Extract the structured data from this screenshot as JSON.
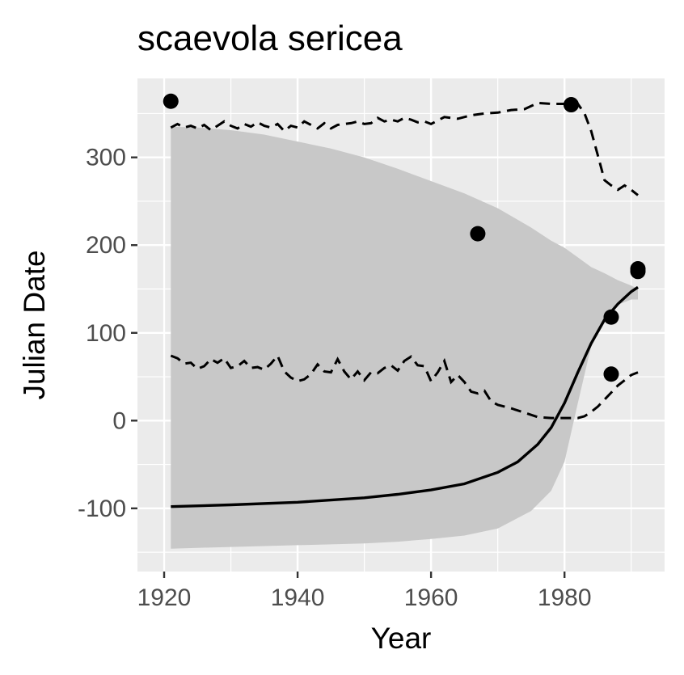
{
  "chart_data": {
    "type": "scatter",
    "title": "scaevola sericea",
    "xlabel": "Year",
    "ylabel": "Julian Date",
    "xlim": [
      1916,
      1995
    ],
    "ylim": [
      -172,
      390
    ],
    "x_ticks": [
      1920,
      1940,
      1960,
      1980
    ],
    "x_tick_labels": [
      "1920",
      "1940",
      "1960",
      "1980"
    ],
    "y_ticks": [
      -100,
      0,
      100,
      200,
      300
    ],
    "y_tick_labels": [
      "-100",
      "0",
      "100",
      "200",
      "300"
    ],
    "grid": true,
    "legend": "none",
    "colors": {
      "panel": "#ebebeb",
      "ribbon": "#c8c8c8",
      "line": "#000000",
      "points": "#000000",
      "tick_text": "#4d4d4d"
    },
    "points": {
      "x": [
        1921,
        1967,
        1981,
        1987,
        1987,
        1991,
        1991
      ],
      "y": [
        364,
        213,
        360,
        118,
        53,
        173,
        170
      ]
    },
    "fit_line": {
      "x": [
        1921,
        1930,
        1940,
        1950,
        1955,
        1960,
        1965,
        1970,
        1973,
        1976,
        1978,
        1980,
        1982,
        1984,
        1986,
        1988,
        1990,
        1991
      ],
      "y": [
        -98,
        -96,
        -93,
        -88,
        -84,
        -79,
        -72,
        -59,
        -47,
        -27,
        -8,
        20,
        55,
        88,
        115,
        133,
        147,
        152
      ]
    },
    "ribbon": {
      "x": [
        1921,
        1925,
        1930,
        1935,
        1940,
        1945,
        1950,
        1955,
        1960,
        1965,
        1970,
        1975,
        1978,
        1980,
        1982,
        1984,
        1986,
        1988,
        1990,
        1991
      ],
      "upper": [
        335,
        334,
        331,
        326,
        318,
        310,
        300,
        287,
        273,
        259,
        242,
        220,
        205,
        197,
        186,
        175,
        168,
        160,
        154,
        150
      ],
      "lower": [
        -146,
        -145,
        -144,
        -143,
        -142,
        -141,
        -140,
        -138,
        -135,
        -131,
        -123,
        -103,
        -80,
        -47,
        20,
        85,
        115,
        132,
        138,
        138
      ]
    },
    "upper_dashed": {
      "x": [
        1921,
        1922,
        1923,
        1924,
        1925,
        1926,
        1927,
        1928,
        1929,
        1930,
        1931,
        1932,
        1933,
        1934,
        1935,
        1936,
        1937,
        1938,
        1939,
        1940,
        1941,
        1942,
        1943,
        1944,
        1945,
        1946,
        1947,
        1948,
        1949,
        1950,
        1951,
        1952,
        1953,
        1954,
        1955,
        1956,
        1957,
        1958,
        1959,
        1960,
        1962,
        1964,
        1966,
        1968,
        1970,
        1972,
        1974,
        1976,
        1978,
        1980,
        1981,
        1982,
        1983,
        1984,
        1985,
        1986,
        1987,
        1988,
        1989,
        1990,
        1991
      ],
      "y": [
        334,
        338,
        334,
        336,
        333,
        337,
        331,
        336,
        341,
        336,
        333,
        338,
        335,
        340,
        336,
        334,
        338,
        330,
        336,
        334,
        341,
        337,
        333,
        339,
        333,
        337,
        338,
        339,
        341,
        338,
        339,
        345,
        341,
        343,
        341,
        345,
        343,
        340,
        341,
        338,
        346,
        344,
        348,
        350,
        351,
        354,
        355,
        362,
        361,
        361,
        362,
        361,
        350,
        330,
        302,
        274,
        268,
        263,
        268,
        263,
        257
      ]
    },
    "lower_dashed": {
      "x": [
        1921,
        1922,
        1923,
        1924,
        1925,
        1926,
        1927,
        1928,
        1929,
        1930,
        1931,
        1932,
        1933,
        1934,
        1935,
        1936,
        1937,
        1938,
        1939,
        1940,
        1941,
        1942,
        1943,
        1944,
        1945,
        1946,
        1947,
        1948,
        1949,
        1950,
        1951,
        1952,
        1953,
        1954,
        1955,
        1956,
        1957,
        1958,
        1959,
        1960,
        1961,
        1962,
        1963,
        1964,
        1965,
        1966,
        1967,
        1968,
        1969,
        1970,
        1972,
        1974,
        1976,
        1978,
        1980,
        1982,
        1983,
        1984,
        1985,
        1986,
        1987,
        1988,
        1989,
        1990,
        1991
      ],
      "y": [
        74,
        71,
        65,
        66,
        59,
        62,
        70,
        66,
        71,
        60,
        62,
        68,
        60,
        61,
        58,
        65,
        74,
        56,
        49,
        45,
        47,
        53,
        64,
        56,
        55,
        70,
        56,
        47,
        56,
        46,
        55,
        54,
        60,
        63,
        57,
        68,
        73,
        63,
        62,
        45,
        55,
        68,
        44,
        52,
        44,
        33,
        31,
        34,
        22,
        18,
        14,
        9,
        4,
        3,
        3,
        3,
        5,
        10,
        16,
        24,
        32,
        40,
        46,
        52,
        55
      ]
    }
  }
}
